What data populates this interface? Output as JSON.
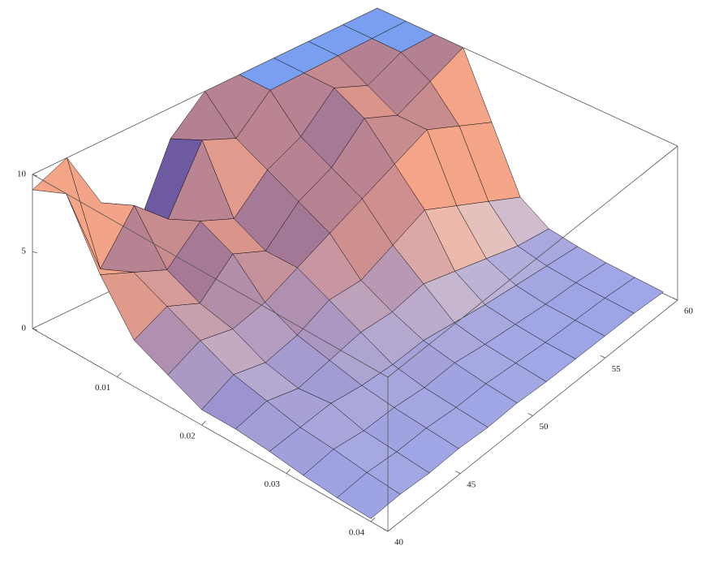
{
  "chart_data": {
    "type": "surface",
    "x": [
      0,
      0.004,
      0.008,
      0.012,
      0.016,
      0.02,
      0.024,
      0.028,
      0.032,
      0.036,
      0.04
    ],
    "y": [
      40,
      42,
      44,
      46,
      48,
      50,
      52,
      54,
      56,
      58,
      60
    ],
    "z": [
      [
        9,
        10,
        6,
        3,
        8,
        10,
        10,
        10,
        10,
        10,
        10
      ],
      [
        10,
        4,
        7,
        5,
        9,
        8,
        10,
        10,
        10,
        10,
        10
      ],
      [
        6,
        5,
        4,
        6,
        5,
        7,
        8,
        10,
        9,
        10,
        10
      ],
      [
        3,
        4,
        3,
        5,
        4,
        6,
        7,
        9,
        8,
        9,
        10
      ],
      [
        2,
        3,
        2.5,
        3,
        4,
        5,
        6,
        7,
        8,
        7,
        6
      ],
      [
        1,
        2,
        1.5,
        2,
        3,
        3,
        4,
        5,
        4,
        3,
        2
      ],
      [
        1,
        1.5,
        1,
        1.5,
        2,
        2,
        2.5,
        2,
        1.5,
        1,
        0.8
      ],
      [
        0.8,
        1,
        1.2,
        1,
        1,
        1.2,
        1,
        0.8,
        0.7,
        0.6,
        0.5
      ],
      [
        0.5,
        0.8,
        0.6,
        0.7,
        0.6,
        0.8,
        0.6,
        0.5,
        0.4,
        0.4,
        0.3
      ],
      [
        0.3,
        0.5,
        0.4,
        0.5,
        0.4,
        0.5,
        0.4,
        0.3,
        0.3,
        0.3,
        0.2
      ],
      [
        0.2,
        0.3,
        0.2,
        0.3,
        0.2,
        0.3,
        0.2,
        0.2,
        0.2,
        0.2,
        0.1
      ]
    ],
    "xlim": [
      0,
      0.042
    ],
    "ylim": [
      40,
      60
    ],
    "zlim": [
      0,
      10
    ],
    "xticks": [
      0.01,
      0.02,
      0.03,
      0.04
    ],
    "yticks": [
      40,
      45,
      50,
      55,
      60
    ],
    "zticks": [
      0,
      5,
      10
    ],
    "cap_color": "#7b9ff0"
  }
}
